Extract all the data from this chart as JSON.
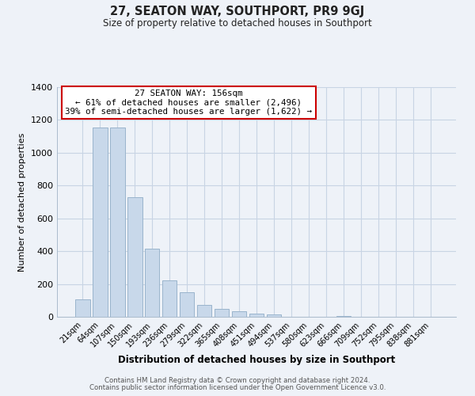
{
  "title": "27, SEATON WAY, SOUTHPORT, PR9 9GJ",
  "subtitle": "Size of property relative to detached houses in Southport",
  "xlabel": "Distribution of detached houses by size in Southport",
  "ylabel": "Number of detached properties",
  "bar_labels": [
    "21sqm",
    "64sqm",
    "107sqm",
    "150sqm",
    "193sqm",
    "236sqm",
    "279sqm",
    "322sqm",
    "365sqm",
    "408sqm",
    "451sqm",
    "494sqm",
    "537sqm",
    "580sqm",
    "623sqm",
    "666sqm",
    "709sqm",
    "752sqm",
    "795sqm",
    "838sqm",
    "881sqm"
  ],
  "bar_values": [
    105,
    1155,
    1155,
    730,
    415,
    220,
    148,
    73,
    50,
    33,
    18,
    15,
    0,
    0,
    0,
    5,
    0,
    0,
    0,
    0,
    0
  ],
  "bar_color": "#c8d8ea",
  "bar_edge_color": "#9ab4cc",
  "annotation_title": "27 SEATON WAY: 156sqm",
  "annotation_line1": "← 61% of detached houses are smaller (2,496)",
  "annotation_line2": "39% of semi-detached houses are larger (1,622) →",
  "annotation_box_color": "#ffffff",
  "annotation_box_edge": "#cc0000",
  "ylim": [
    0,
    1400
  ],
  "yticks": [
    0,
    200,
    400,
    600,
    800,
    1000,
    1200,
    1400
  ],
  "grid_color": "#c8d4e4",
  "background_color": "#eef2f8",
  "footer_line1": "Contains HM Land Registry data © Crown copyright and database right 2024.",
  "footer_line2": "Contains public sector information licensed under the Open Government Licence v3.0."
}
